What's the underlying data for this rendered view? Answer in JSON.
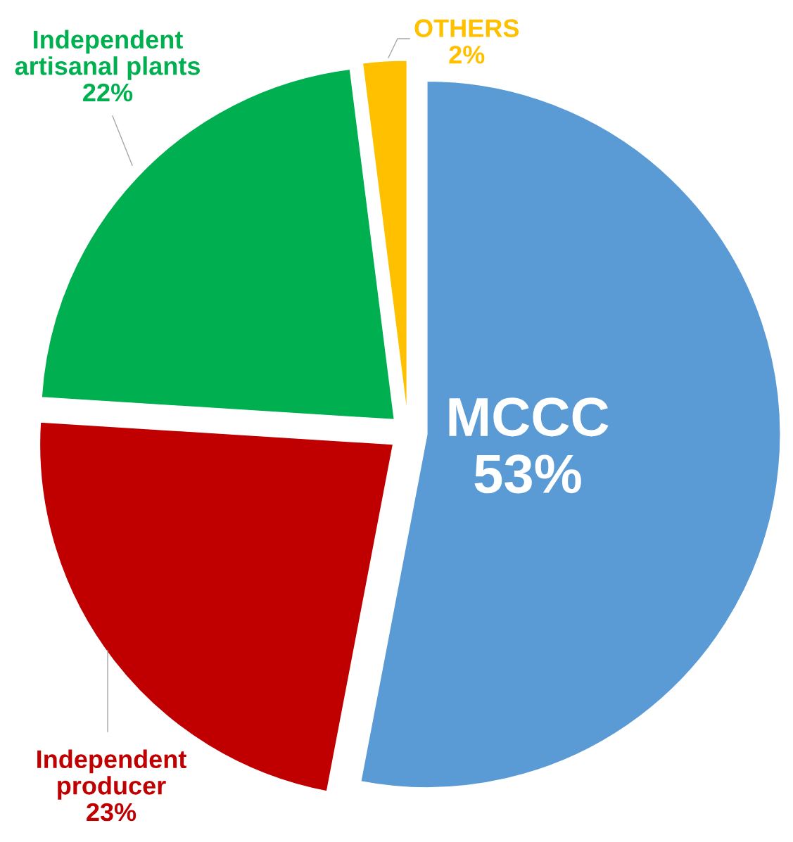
{
  "chart_data": {
    "type": "pie",
    "categories": [
      "MCCC",
      "Independent producer",
      "Independent artisanal plants",
      "OTHERS"
    ],
    "values": [
      53,
      23,
      22,
      2
    ],
    "value_labels": [
      "53%",
      "23%",
      "22%",
      "2%"
    ],
    "colors": [
      "#5b9bd5",
      "#c00000",
      "#00b050",
      "#ffc000"
    ]
  }
}
